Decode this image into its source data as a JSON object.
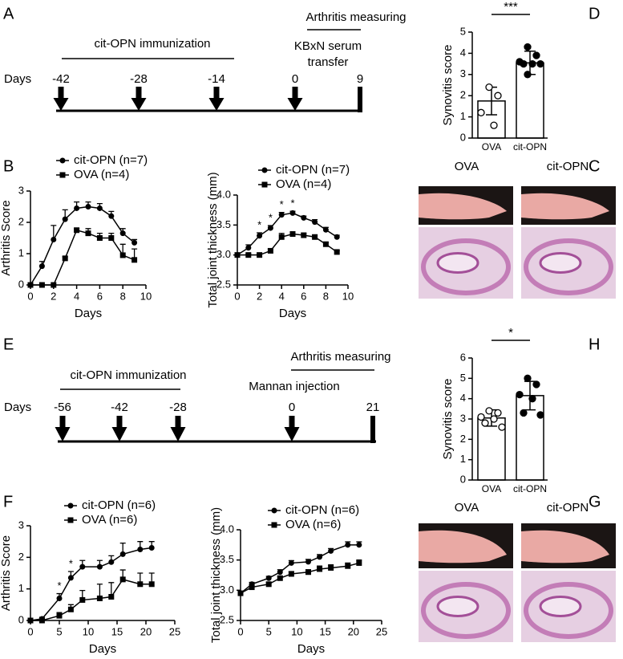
{
  "panels": [
    "A",
    "B",
    "C",
    "D",
    "E",
    "F",
    "G",
    "H"
  ],
  "timelines": [
    {
      "days_label": "Days",
      "days": [
        "-42",
        "-28",
        "-14",
        "0",
        "9"
      ],
      "immunization": "cit-OPN immunization",
      "treatment": [
        "KBxN serum",
        "transfer"
      ],
      "measuring": "Arthritis measuring"
    },
    {
      "days_label": "Days",
      "days": [
        "-56",
        "-42",
        "-28",
        "0",
        "21"
      ],
      "immunization": "cit-OPN immunization",
      "treatment": [
        "Mannan injection"
      ],
      "measuring": "Arthritis measuring"
    }
  ],
  "images": [
    {
      "labels": [
        "OVA",
        "cit-OPN"
      ]
    },
    {
      "labels": [
        "OVA",
        "cit-OPN"
      ]
    }
  ],
  "chart_data": [
    {
      "type": "line",
      "x_label": "Days",
      "y_label": "Arthritis Score",
      "xlim": [
        0,
        10
      ],
      "xticks": [
        0,
        2,
        4,
        6,
        8,
        10
      ],
      "ylim": [
        0,
        3
      ],
      "yticks": [
        0,
        1,
        2,
        3
      ],
      "x": [
        0,
        1,
        2,
        3,
        4,
        5,
        6,
        7,
        8,
        9
      ],
      "series": [
        {
          "name": "cit-OPN (n=7)",
          "marker": "circle",
          "color": "#000000",
          "values": [
            0,
            0.6,
            1.45,
            2.1,
            2.45,
            2.5,
            2.45,
            2.2,
            1.65,
            1.35
          ],
          "errors": [
            0,
            0.15,
            0.45,
            0.3,
            0.2,
            0.15,
            0.15,
            0.15,
            0.15,
            0.1
          ]
        },
        {
          "name": "OVA (n=4)",
          "marker": "square",
          "color": "#000000",
          "values": [
            0,
            0,
            0,
            0.85,
            1.75,
            1.65,
            1.5,
            1.5,
            0.95,
            0.8
          ],
          "errors": [
            0,
            0,
            0,
            0.05,
            0.05,
            0.15,
            0.15,
            0.15,
            0.35,
            0.35
          ]
        }
      ]
    },
    {
      "type": "line",
      "x_label": "Days",
      "y_label": "Total joint thickness (mm)",
      "xlim": [
        0,
        10
      ],
      "xticks": [
        0,
        2,
        4,
        6,
        8,
        10
      ],
      "ylim": [
        2.5,
        4
      ],
      "yticks": [
        2.5,
        {
          "value": 3,
          "label": "3.0"
        },
        3.5,
        {
          "value": 4,
          "label": "4.0"
        }
      ],
      "x": [
        0,
        1,
        2,
        3,
        4,
        5,
        6,
        7,
        8,
        9
      ],
      "series": [
        {
          "name": "cit-OPN (n=7)",
          "marker": "circle",
          "color": "#000000",
          "values": [
            3.0,
            3.12,
            3.32,
            3.45,
            3.67,
            3.7,
            3.62,
            3.55,
            3.42,
            3.3
          ],
          "errors": [
            0.02,
            0.05,
            0.05,
            0.04,
            0.04,
            0.03,
            0.03,
            0.04,
            0.04,
            0.03
          ]
        },
        {
          "name": "OVA (n=4)",
          "marker": "square",
          "color": "#000000",
          "values": [
            3.0,
            3.0,
            3.0,
            3.07,
            3.3,
            3.35,
            3.33,
            3.3,
            3.18,
            3.05
          ],
          "errors": [
            0.02,
            0.02,
            0.02,
            0.03,
            0.06,
            0.03,
            0.03,
            0.03,
            0.03,
            0.02
          ]
        }
      ],
      "annotations": [
        {
          "text": "*",
          "x": 2
        },
        {
          "text": "*",
          "x": 3
        },
        {
          "text": "*",
          "x": 4
        },
        {
          "text": "*",
          "x": 5
        }
      ]
    },
    {
      "type": "bar",
      "y_label": "Synovitis score",
      "ylim": [
        0,
        5
      ],
      "yticks": [
        0,
        1,
        2,
        3,
        4,
        5
      ],
      "categories": [
        "OVA",
        "cit-OPN"
      ],
      "values": [
        1.75,
        3.55
      ],
      "errors": [
        0.65,
        0.55
      ],
      "color": "#ffffff",
      "point_colors": [
        "#ffffff",
        "#000000"
      ],
      "points": [
        [
          2.4,
          2.0,
          1.2,
          0.6
        ],
        [
          4.3,
          3.9,
          3.6,
          3.5,
          3.5,
          3.5,
          3.0
        ]
      ],
      "significance": "***"
    },
    {
      "type": "line",
      "x_label": "Days",
      "y_label": "Arthritis Score",
      "xlim": [
        0,
        25
      ],
      "xticks": [
        0,
        5,
        10,
        15,
        20,
        25
      ],
      "ylim": [
        0,
        3
      ],
      "yticks": [
        0,
        1,
        2,
        3
      ],
      "x": [
        0,
        2,
        5,
        7,
        9,
        12,
        14,
        16,
        19,
        21
      ],
      "series": [
        {
          "name": "cit-OPN (n=6)",
          "marker": "circle",
          "color": "#000000",
          "values": [
            0,
            0.05,
            0.7,
            1.35,
            1.7,
            1.7,
            1.85,
            2.1,
            2.25,
            2.3
          ],
          "errors": [
            0,
            0.05,
            0.15,
            0.2,
            0.2,
            0.2,
            0.2,
            0.35,
            0.25,
            0.2
          ]
        },
        {
          "name": "OVA (n=6)",
          "marker": "square",
          "color": "#000000",
          "values": [
            0,
            0,
            0.15,
            0.35,
            0.65,
            0.7,
            0.75,
            1.3,
            1.15,
            1.15
          ],
          "errors": [
            0,
            0,
            0.1,
            0.15,
            0.3,
            0.45,
            0.45,
            0.3,
            0.35,
            0.35
          ]
        }
      ],
      "annotations": [
        {
          "text": "*",
          "x": 5
        },
        {
          "text": "*",
          "x": 7
        }
      ]
    },
    {
      "type": "line",
      "x_label": "Days",
      "y_label": "Total joint thickness (mm)",
      "xlim": [
        0,
        25
      ],
      "xticks": [
        0,
        5,
        10,
        15,
        20,
        25
      ],
      "ylim": [
        2.5,
        4
      ],
      "yticks": [
        2.5,
        {
          "value": 3,
          "label": "3.0"
        },
        3.5,
        {
          "value": 4,
          "label": "4.0"
        }
      ],
      "x": [
        0,
        2,
        5,
        7,
        9,
        12,
        14,
        16,
        19,
        21
      ],
      "series": [
        {
          "name": "cit-OPN (n=6)",
          "marker": "circle",
          "color": "#000000",
          "values": [
            2.95,
            3.1,
            3.2,
            3.3,
            3.45,
            3.47,
            3.55,
            3.65,
            3.75,
            3.75
          ],
          "errors": [
            0.02,
            0.03,
            0.03,
            0.04,
            0.04,
            0.04,
            0.04,
            0.04,
            0.05,
            0.05
          ]
        },
        {
          "name": "OVA (n=6)",
          "marker": "square",
          "color": "#000000",
          "values": [
            2.95,
            3.05,
            3.1,
            3.2,
            3.27,
            3.3,
            3.35,
            3.37,
            3.4,
            3.45
          ],
          "errors": [
            0.02,
            0.03,
            0.03,
            0.03,
            0.04,
            0.04,
            0.05,
            0.05,
            0.05,
            0.05
          ]
        }
      ]
    },
    {
      "type": "bar",
      "y_label": "Synovitis score",
      "ylim": [
        0,
        6
      ],
      "yticks": [
        0,
        1,
        2,
        3,
        4,
        5,
        6
      ],
      "categories": [
        "OVA",
        "cit-OPN"
      ],
      "values": [
        3.05,
        4.15
      ],
      "errors": [
        0.4,
        0.7
      ],
      "color": "#ffffff",
      "point_colors": [
        "#ffffff",
        "#000000"
      ],
      "points": [
        [
          3.4,
          3.3,
          3.1,
          3.0,
          2.8,
          2.6
        ],
        [
          5.0,
          4.7,
          4.2,
          4.0,
          3.3,
          3.2
        ]
      ],
      "significance": "*"
    }
  ]
}
